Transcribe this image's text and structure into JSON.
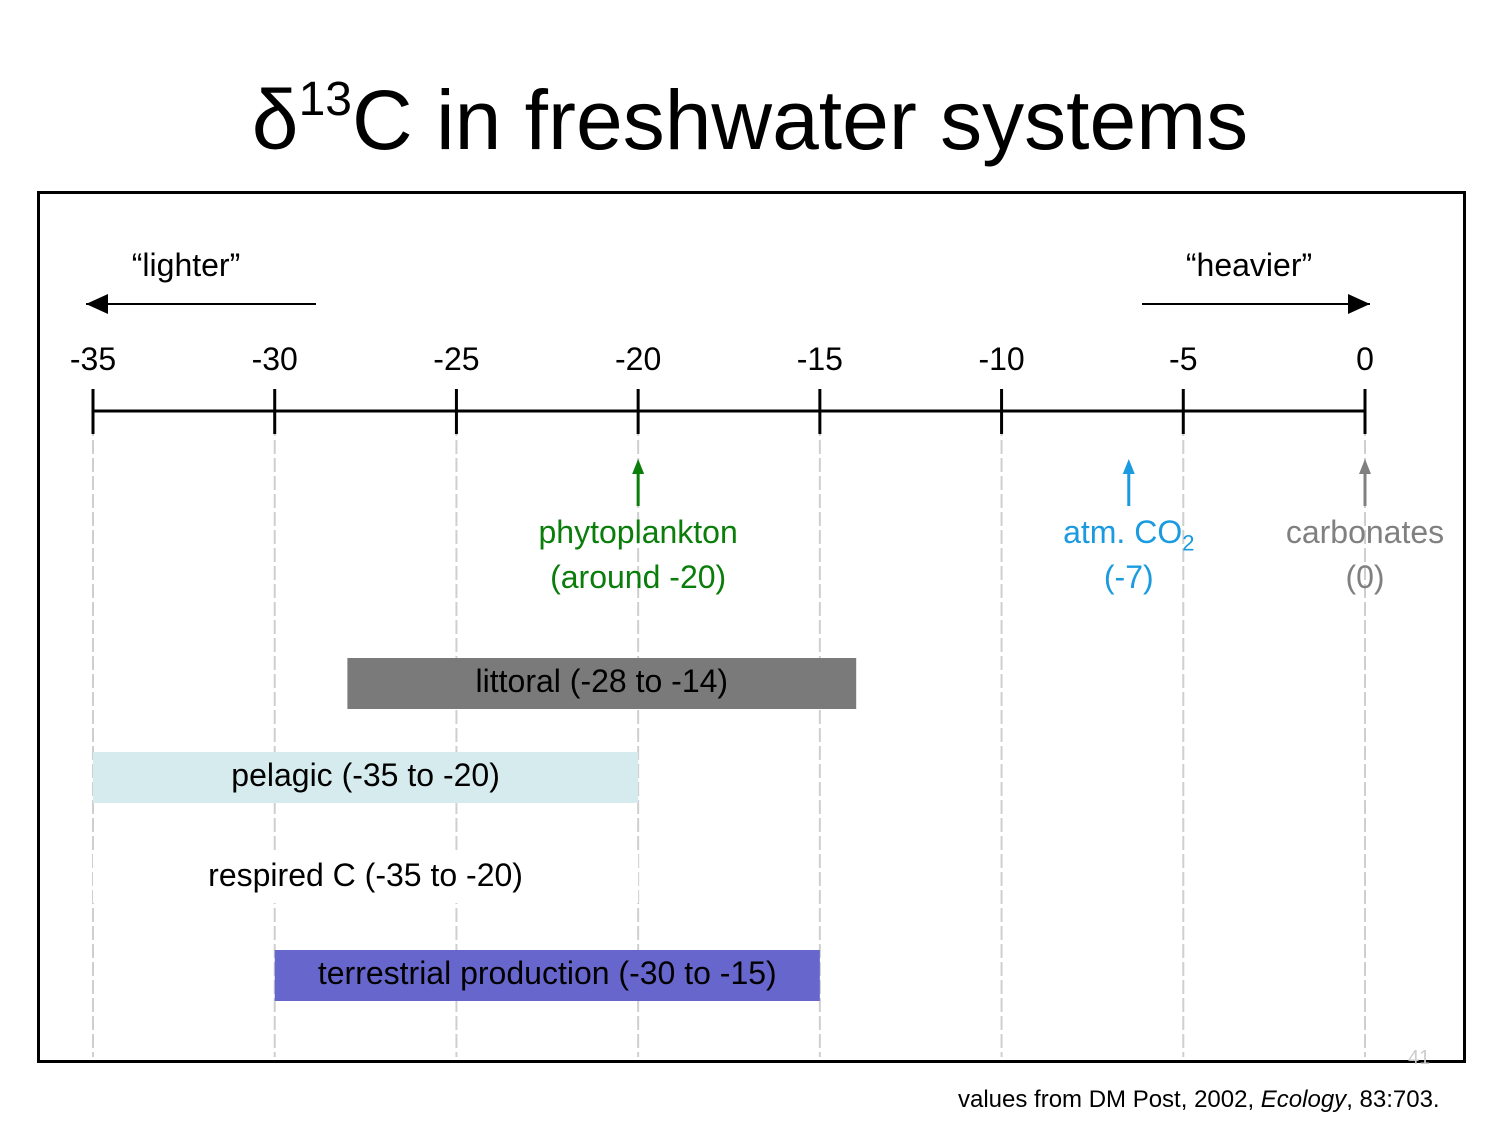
{
  "slide": {
    "title_prefix": "δ",
    "title_superscript": "13",
    "title_suffix": "C in freshwater systems",
    "page_number": "41",
    "source": {
      "before": "values from DM Post, 2002, ",
      "journal": "Ecology",
      "after": ", 83:703."
    }
  },
  "directions": {
    "lighter": "“lighter”",
    "heavier": "“heavier”"
  },
  "chart_data": {
    "type": "range",
    "axis": {
      "min": -35,
      "max": 0,
      "ticks": [
        -35,
        -30,
        -25,
        -20,
        -15,
        -10,
        -5,
        0
      ],
      "tick_labels": [
        "-35",
        "-30",
        "-25",
        "-20",
        "-15",
        "-10",
        "-5",
        "0"
      ]
    },
    "markers": [
      {
        "value": -20,
        "line1": "phytoplankton",
        "line2": "(around -20)",
        "color": "#0a7d0a"
      },
      {
        "value": -6.5,
        "line1": "atm. CO",
        "line1_sub": "2",
        "line2": "(-7)",
        "color": "#1a9be0"
      },
      {
        "value": 0,
        "line1": "carbonates",
        "line2": "(0)",
        "color": "#808080"
      }
    ],
    "ranges": [
      {
        "label": "littoral (-28 to -14)",
        "from": -28,
        "to": -14,
        "fill": "#7a7a7a"
      },
      {
        "label": "pelagic (-35 to -20)",
        "from": -35,
        "to": -20,
        "fill": "#d6ebee"
      },
      {
        "label": "respired C (-35 to -20)",
        "from": -35,
        "to": -20,
        "fill": "#ffffff"
      },
      {
        "label": "terrestrial production (-30 to -15)",
        "from": -30,
        "to": -15,
        "fill": "#6766cc"
      }
    ]
  }
}
